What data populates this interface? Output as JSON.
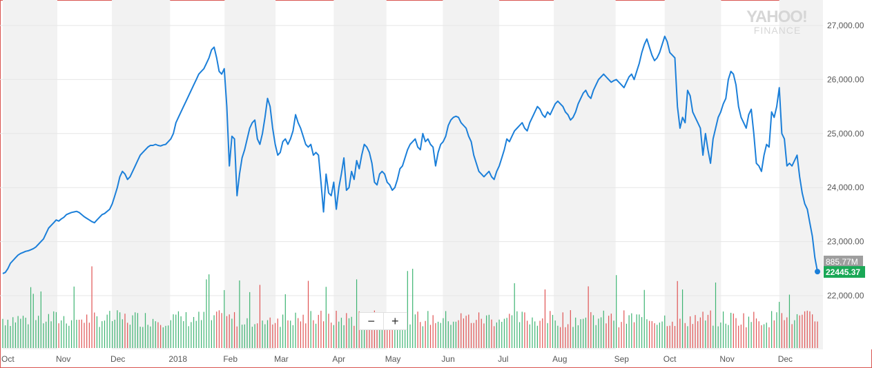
{
  "watermark": {
    "line1": "YAHOO!",
    "line2": "FINANCE"
  },
  "colors": {
    "price_line": "#1b7fd9",
    "volume_up": "#3cb371",
    "volume_down": "#e05252",
    "band": "#f2f2f2",
    "volume_badge": "#9e9e9e",
    "price_badge": "#1aa856"
  },
  "zoom": {
    "minus": "−",
    "plus": "+"
  },
  "chart_data": {
    "type": "line",
    "title": "",
    "xlabel": "",
    "ylabel": "",
    "y_ticks": [
      "27,000.00",
      "26,000.00",
      "25,000.00",
      "24,000.00",
      "23,000.00",
      "22,000.00"
    ],
    "y_tick_values": [
      27000,
      26000,
      25000,
      24000,
      23000,
      22000
    ],
    "ylim": [
      21000,
      27400
    ],
    "x_ticks": [
      "Oct",
      "Nov",
      "Dec",
      "2018",
      "Feb",
      "Mar",
      "Apr",
      "May",
      "Jun",
      "Jul",
      "Aug",
      "Sep",
      "Oct",
      "Nov",
      "Dec"
    ],
    "x_tick_dates": [
      "2017-10-02",
      "2017-11-01",
      "2017-12-01",
      "2018-01-02",
      "2018-02-01",
      "2018-03-01",
      "2018-04-02",
      "2018-05-01",
      "2018-06-01",
      "2018-07-02",
      "2018-08-01",
      "2018-09-04",
      "2018-10-01",
      "2018-11-01",
      "2018-12-03"
    ],
    "x_range": [
      "2017-10-02",
      "2018-12-24"
    ],
    "grid": true,
    "series": [
      {
        "values": [
          [
            22410,
            22430,
            22500,
            22600,
            22650,
            22700,
            22750,
            22780,
            22800,
            22820,
            22830,
            22850,
            22870,
            22900,
            22950,
            23000,
            23050,
            23150,
            23250,
            23300,
            23350,
            23400,
            23380,
            23420,
            23450,
            23500,
            23520,
            23540,
            23550,
            23560,
            23540,
            23500,
            23460,
            23430,
            23400,
            23370,
            23350,
            23400,
            23450,
            23500
          ],
          [
            23520,
            23560,
            23600,
            23700,
            23850,
            24000,
            24200,
            24300,
            24250,
            24150,
            24200,
            24300,
            24400,
            24500,
            24600,
            24650,
            24700,
            24750,
            24780,
            24780,
            24800,
            24780,
            24770,
            24790,
            24800,
            24850,
            24900,
            25000,
            25200,
            25300,
            25400,
            25500,
            25600,
            25700,
            25800
          ],
          [
            25900,
            26000,
            26100,
            26150,
            26200,
            26300,
            26400,
            26550,
            26600,
            26400,
            26150,
            26100,
            26200,
            25500,
            24400,
            24950,
            24900,
            23850,
            24250,
            24550,
            24700,
            24900,
            25100,
            25200,
            25250,
            24900,
            24800,
            25000,
            25300,
            25650,
            25500,
            25100,
            24800,
            24600,
            24650,
            24850,
            24900,
            24800,
            24900,
            25050,
            25350,
            25200,
            25100,
            24950,
            24800,
            24750,
            24800,
            24600,
            24650,
            24600
          ],
          [
            24100,
            23550,
            24250,
            23900,
            23850,
            24100,
            23600,
            24000,
            24250,
            24550,
            23950,
            24000,
            24300,
            24150,
            24500,
            24350,
            24600,
            24800,
            24750,
            24650,
            24450,
            24100,
            24050,
            24250,
            24300,
            24250,
            24100,
            24050,
            23950,
            24000,
            24150,
            24350,
            24400,
            24550,
            24700,
            24800,
            24850,
            24900,
            24750,
            24700,
            25000,
            24850,
            24900,
            24800,
            24750,
            24400,
            24650,
            24800,
            24850,
            24950,
            25150,
            25250,
            25300,
            25320,
            25300,
            25200,
            25150,
            25100,
            24950,
            24850
          ],
          [
            24600,
            24450,
            24300,
            24250,
            24200,
            24250,
            24300,
            24200,
            24150,
            24300,
            24400,
            24550,
            24700,
            24900,
            24850,
            24950,
            25050,
            25100,
            25150,
            25200,
            25100,
            25050,
            25200,
            25300,
            25400,
            25500,
            25450,
            25350,
            25300,
            25400,
            25350,
            25450,
            25550,
            25600,
            25550,
            25500,
            25400,
            25350,
            25250,
            25300,
            25400,
            25550,
            25650,
            25750,
            25800,
            25700,
            25650,
            25800,
            25900,
            26000,
            26050,
            26100,
            26050,
            26000,
            25950,
            25980,
            26000,
            25950,
            25900,
            25850
          ],
          [
            25950,
            26050,
            26100,
            26000,
            26150,
            26300,
            26500,
            26650,
            26750,
            26600,
            26450,
            26350,
            26400,
            26500,
            26650,
            26800,
            26700,
            26500,
            26450,
            26400,
            25500,
            25100,
            25300,
            25200,
            25800,
            25700,
            25400,
            25300,
            25200,
            25100,
            24600,
            25000,
            24700,
            24450,
            24900,
            25100,
            25300,
            25400,
            25550,
            25650,
            26000,
            26150,
            26100,
            25900,
            25500,
            25300,
            25200,
            25100,
            25350,
            25450,
            25000,
            24450,
            24400,
            24300,
            24600,
            24800,
            24750,
            25400,
            25300,
            25500,
            25850,
            25000,
            24900,
            24400,
            24450,
            24400,
            24500,
            24600,
            24200,
            23900,
            23700,
            23600,
            23350,
            23100,
            22700,
            22445
          ]
        ]
      }
    ],
    "last_price": "22445.37",
    "last_volume": "885.77M",
    "volume_series_info": "daily volume bars along bottom, green = up day, red = down day"
  }
}
